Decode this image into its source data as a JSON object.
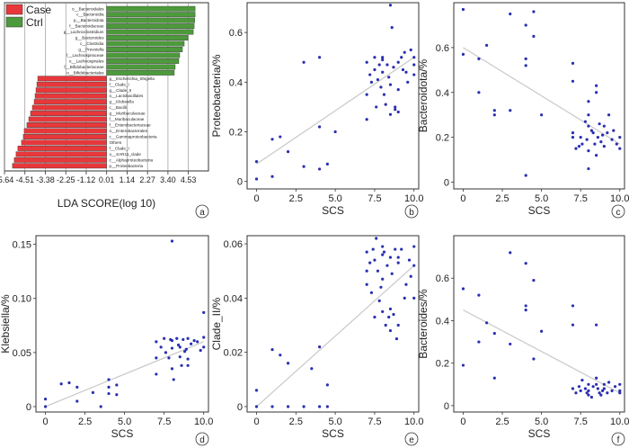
{
  "chart_data": [
    {
      "panel": "a",
      "type": "bar",
      "orientation": "horizontal",
      "xlabel": "LDA SCORE(log 10)",
      "xlim": [
        -5.64,
        5.64
      ],
      "xticks": [
        "-5.64",
        "-4.51",
        "-3.38",
        "-2.25",
        "-1.12",
        "0.01",
        "1.14",
        "2.27",
        "3.40",
        "4.53"
      ],
      "legend": [
        {
          "name": "Case",
          "color": "#e8373a"
        },
        {
          "name": "Ctrl",
          "color": "#4d9a3c"
        }
      ],
      "categories": [
        "o__Bacteroidales",
        "c__Bacteroidia",
        "p__Bacteroidota",
        "f__Bacteroidaceae",
        "g__Lachnoclostridium",
        "g__Bacteroides",
        "c__Clostridia",
        "g__Prevotella",
        "f__Lachnospiraceae",
        "o__Lachnospirales",
        "f__Bifidobacteriaceae",
        "o__Bifidobacteriales",
        "g__Escherichia_Shigella",
        "f__Clade_I",
        "g__Clade_II",
        "o__Lactobacillales",
        "g__Klebsiella",
        "c__Bacilli",
        "g__Muribaculaceae",
        "f__Muribaculaceae",
        "f__Enterobacteriaceae",
        "o__Enterobacterales",
        "c__Gammaproteobacteria",
        "Others",
        "f__Clade_I",
        "o__SAR11_clade",
        "c__Alphaproteobacteria",
        "p__Proteobacteria"
      ],
      "groups": [
        "Ctrl",
        "Ctrl",
        "Ctrl",
        "Ctrl",
        "Ctrl",
        "Ctrl",
        "Ctrl",
        "Ctrl",
        "Ctrl",
        "Ctrl",
        "Ctrl",
        "Ctrl",
        "Case",
        "Case",
        "Case",
        "Case",
        "Case",
        "Case",
        "Case",
        "Case",
        "Case",
        "Case",
        "Case",
        "Case",
        "Case",
        "Case",
        "Case",
        "Case"
      ],
      "values": [
        4.9,
        4.9,
        4.88,
        4.85,
        4.8,
        4.5,
        4.3,
        4.2,
        4.05,
        4.0,
        3.8,
        3.75,
        -3.8,
        -3.85,
        -3.9,
        -3.95,
        -4.0,
        -4.1,
        -4.2,
        -4.3,
        -4.4,
        -4.55,
        -4.6,
        -4.7,
        -4.9,
        -5.0,
        -5.1,
        -5.2
      ]
    },
    {
      "panel": "b",
      "type": "scatter",
      "xlabel": "SCS",
      "ylabel": "Proteobacteria/%",
      "xlim": [
        -0.6,
        10.3
      ],
      "ylim": [
        -0.03,
        0.72
      ],
      "xticks": [
        "0",
        "2.5",
        "5.0",
        "7.5",
        "10.0"
      ],
      "yticks": [
        "0",
        "0.2",
        "0.4",
        "0.6"
      ],
      "fit": [
        [
          0,
          0.07
        ],
        [
          10,
          0.5
        ]
      ],
      "points": [
        [
          0,
          0.01
        ],
        [
          0,
          0.08
        ],
        [
          1,
          0.17
        ],
        [
          1,
          0.02
        ],
        [
          1.5,
          0.18
        ],
        [
          2,
          0.12
        ],
        [
          3,
          0.06
        ],
        [
          3,
          0.48
        ],
        [
          4,
          0.22
        ],
        [
          4,
          0.05
        ],
        [
          4,
          0.5
        ],
        [
          4.5,
          0.07
        ],
        [
          5,
          0.2
        ],
        [
          7,
          0.35
        ],
        [
          7,
          0.25
        ],
        [
          7,
          0.48
        ],
        [
          7.2,
          0.43
        ],
        [
          7.3,
          0.4
        ],
        [
          7.5,
          0.45
        ],
        [
          7.5,
          0.5
        ],
        [
          7.6,
          0.3
        ],
        [
          7.7,
          0.41
        ],
        [
          7.8,
          0.47
        ],
        [
          7.9,
          0.38
        ],
        [
          8,
          0.5
        ],
        [
          8,
          0.44
        ],
        [
          8,
          0.49
        ],
        [
          8.1,
          0.35
        ],
        [
          8.2,
          0.31
        ],
        [
          8.3,
          0.47
        ],
        [
          8.4,
          0.42
        ],
        [
          8.5,
          0.39
        ],
        [
          8.5,
          0.27
        ],
        [
          8.5,
          0.71
        ],
        [
          8.6,
          0.62
        ],
        [
          8.7,
          0.46
        ],
        [
          8.8,
          0.3
        ],
        [
          8.8,
          0.29
        ],
        [
          9,
          0.28
        ],
        [
          9,
          0.37
        ],
        [
          9,
          0.48
        ],
        [
          9.2,
          0.5
        ],
        [
          9.3,
          0.45
        ],
        [
          9.4,
          0.52
        ],
        [
          9.5,
          0.44
        ],
        [
          9.6,
          0.4
        ],
        [
          9.8,
          0.53
        ],
        [
          10,
          0.47
        ],
        [
          10,
          0.5
        ],
        [
          10,
          0.43
        ]
      ]
    },
    {
      "panel": "c",
      "type": "scatter",
      "xlabel": "SCS",
      "ylabel": "Bacteroidota/%",
      "xlim": [
        -0.6,
        10.3
      ],
      "ylim": [
        -0.03,
        0.8
      ],
      "xticks": [
        "0",
        "2.5",
        "5.0",
        "7.5",
        "10.0"
      ],
      "yticks": [
        "0",
        "0.2",
        "0.4",
        "0.6"
      ],
      "fit": [
        [
          0,
          0.6
        ],
        [
          10,
          0.17
        ]
      ],
      "points": [
        [
          0,
          0.77
        ],
        [
          0,
          0.57
        ],
        [
          1,
          0.4
        ],
        [
          1,
          0.55
        ],
        [
          1.5,
          0.61
        ],
        [
          2,
          0.32
        ],
        [
          2,
          0.3
        ],
        [
          3,
          0.75
        ],
        [
          3,
          0.32
        ],
        [
          4,
          0.55
        ],
        [
          4,
          0.52
        ],
        [
          4,
          0.03
        ],
        [
          4,
          0.7
        ],
        [
          4.5,
          0.65
        ],
        [
          4.5,
          0.76
        ],
        [
          5,
          0.3
        ],
        [
          7,
          0.53
        ],
        [
          7,
          0.45
        ],
        [
          7,
          0.22
        ],
        [
          7,
          0.2
        ],
        [
          7.2,
          0.15
        ],
        [
          7.4,
          0.16
        ],
        [
          7.5,
          0.2
        ],
        [
          7.6,
          0.17
        ],
        [
          7.8,
          0.27
        ],
        [
          7.9,
          0.19
        ],
        [
          8,
          0.36
        ],
        [
          8,
          0.3
        ],
        [
          8,
          0.14
        ],
        [
          8,
          0.06
        ],
        [
          8,
          0.25
        ],
        [
          8.2,
          0.23
        ],
        [
          8.3,
          0.22
        ],
        [
          8.4,
          0.17
        ],
        [
          8.5,
          0.4
        ],
        [
          8.5,
          0.12
        ],
        [
          8.5,
          0.43
        ],
        [
          8.6,
          0.2
        ],
        [
          8.7,
          0.26
        ],
        [
          8.8,
          0.18
        ],
        [
          8.9,
          0.21
        ],
        [
          9,
          0.25
        ],
        [
          9,
          0.16
        ],
        [
          9.2,
          0.22
        ],
        [
          9.3,
          0.3
        ],
        [
          9.5,
          0.19
        ],
        [
          9.6,
          0.23
        ],
        [
          9.8,
          0.17
        ],
        [
          10,
          0.15
        ],
        [
          10,
          0.2
        ]
      ]
    },
    {
      "panel": "d",
      "type": "scatter",
      "xlabel": "SCS",
      "ylabel": "Klebsiella/%",
      "xlim": [
        -0.6,
        10.3
      ],
      "ylim": [
        -0.005,
        0.158
      ],
      "xticks": [
        "0",
        "2.5",
        "5.0",
        "7.5",
        "10.0"
      ],
      "yticks": [
        "0",
        "0.05",
        "0.10",
        "0.15"
      ],
      "fit": [
        [
          0,
          0.0
        ],
        [
          10,
          0.06
        ]
      ],
      "points": [
        [
          0,
          0.0
        ],
        [
          0,
          0.007
        ],
        [
          1,
          0.021
        ],
        [
          1.5,
          0.022
        ],
        [
          2,
          0.005
        ],
        [
          2,
          0.018
        ],
        [
          3,
          0.013
        ],
        [
          3.5,
          0.0
        ],
        [
          4,
          0.018
        ],
        [
          4,
          0.025
        ],
        [
          4,
          0.012
        ],
        [
          4.5,
          0.011
        ],
        [
          4.5,
          0.02
        ],
        [
          7,
          0.06
        ],
        [
          7,
          0.045
        ],
        [
          7,
          0.03
        ],
        [
          7.3,
          0.055
        ],
        [
          7.5,
          0.063
        ],
        [
          7.6,
          0.05
        ],
        [
          7.8,
          0.045
        ],
        [
          7.9,
          0.062
        ],
        [
          8,
          0.153
        ],
        [
          8,
          0.054
        ],
        [
          8,
          0.035
        ],
        [
          8,
          0.061
        ],
        [
          8.1,
          0.025
        ],
        [
          8.3,
          0.063
        ],
        [
          8.4,
          0.057
        ],
        [
          8.5,
          0.055
        ],
        [
          8.5,
          0.046
        ],
        [
          8.6,
          0.038
        ],
        [
          8.7,
          0.062
        ],
        [
          8.8,
          0.051
        ],
        [
          8.9,
          0.053
        ],
        [
          9,
          0.044
        ],
        [
          9,
          0.063
        ],
        [
          9,
          0.038
        ],
        [
          9.2,
          0.058
        ],
        [
          9.4,
          0.061
        ],
        [
          9.6,
          0.06
        ],
        [
          9.8,
          0.052
        ],
        [
          10,
          0.087
        ],
        [
          10,
          0.064
        ],
        [
          10,
          0.055
        ]
      ]
    },
    {
      "panel": "e",
      "type": "scatter",
      "xlabel": "SCS",
      "ylabel": "Clade_II/%",
      "xlim": [
        -0.6,
        10.3
      ],
      "ylim": [
        -0.002,
        0.063
      ],
      "xticks": [
        "0",
        "2.5",
        "5.0",
        "7.5",
        "10.0"
      ],
      "yticks": [
        "0",
        "0.02",
        "0.04",
        "0.06"
      ],
      "fit": [
        [
          0,
          0.0
        ],
        [
          10,
          0.052
        ]
      ],
      "points": [
        [
          0,
          0.006
        ],
        [
          0,
          0.0
        ],
        [
          1,
          0.021
        ],
        [
          1,
          0.0
        ],
        [
          1.5,
          0.019
        ],
        [
          2,
          0.016
        ],
        [
          2,
          0.0
        ],
        [
          3,
          0.0
        ],
        [
          3.5,
          0.014
        ],
        [
          4,
          0.022
        ],
        [
          4,
          0.0
        ],
        [
          4.5,
          0.008
        ],
        [
          4.5,
          0.0
        ],
        [
          7,
          0.057
        ],
        [
          7,
          0.05
        ],
        [
          7,
          0.045
        ],
        [
          7.2,
          0.053
        ],
        [
          7.3,
          0.042
        ],
        [
          7.4,
          0.058
        ],
        [
          7.5,
          0.054
        ],
        [
          7.5,
          0.033
        ],
        [
          7.6,
          0.062
        ],
        [
          7.7,
          0.05
        ],
        [
          7.8,
          0.039
        ],
        [
          7.9,
          0.044
        ],
        [
          8,
          0.059
        ],
        [
          8,
          0.056
        ],
        [
          8,
          0.035
        ],
        [
          8,
          0.047
        ],
        [
          8.1,
          0.057
        ],
        [
          8.2,
          0.03
        ],
        [
          8.3,
          0.052
        ],
        [
          8.4,
          0.033
        ],
        [
          8.5,
          0.055
        ],
        [
          8.5,
          0.036
        ],
        [
          8.5,
          0.028
        ],
        [
          8.6,
          0.049
        ],
        [
          8.7,
          0.034
        ],
        [
          8.8,
          0.058
        ],
        [
          8.9,
          0.025
        ],
        [
          9,
          0.053
        ],
        [
          9,
          0.055
        ],
        [
          9,
          0.03
        ],
        [
          9.2,
          0.058
        ],
        [
          9.4,
          0.04
        ],
        [
          9.5,
          0.045
        ],
        [
          9.7,
          0.054
        ],
        [
          9.8,
          0.048
        ],
        [
          10,
          0.059
        ],
        [
          10,
          0.04
        ],
        [
          10,
          0.052
        ]
      ]
    },
    {
      "panel": "f",
      "type": "scatter",
      "xlabel": "SCS",
      "ylabel": "Bacteroides/%",
      "xlim": [
        -0.6,
        10.3
      ],
      "ylim": [
        -0.03,
        0.8
      ],
      "xticks": [
        "0",
        "2.5",
        "5.0",
        "7.5",
        "10.0"
      ],
      "yticks": [
        "0",
        "0.2",
        "0.4",
        "0.6"
      ],
      "fit": [
        [
          0,
          0.45
        ],
        [
          10,
          0.06
        ]
      ],
      "points": [
        [
          0,
          0.55
        ],
        [
          0,
          0.19
        ],
        [
          1,
          0.52
        ],
        [
          1,
          0.3
        ],
        [
          1.5,
          0.39
        ],
        [
          2,
          0.34
        ],
        [
          2,
          0.13
        ],
        [
          3,
          0.72
        ],
        [
          3,
          0.29
        ],
        [
          4,
          0.47
        ],
        [
          4,
          0.45
        ],
        [
          4,
          0.67
        ],
        [
          4.5,
          0.59
        ],
        [
          4.5,
          0.22
        ],
        [
          5,
          0.35
        ],
        [
          7,
          0.47
        ],
        [
          7,
          0.38
        ],
        [
          7,
          0.08
        ],
        [
          7.2,
          0.06
        ],
        [
          7.4,
          0.09
        ],
        [
          7.5,
          0.07
        ],
        [
          7.6,
          0.12
        ],
        [
          7.8,
          0.08
        ],
        [
          7.9,
          0.06
        ],
        [
          8,
          0.07
        ],
        [
          8,
          0.1
        ],
        [
          8,
          0.05
        ],
        [
          8.2,
          0.04
        ],
        [
          8.3,
          0.09
        ],
        [
          8.5,
          0.38
        ],
        [
          8.5,
          0.1
        ],
        [
          8.5,
          0.13
        ],
        [
          8.6,
          0.08
        ],
        [
          8.7,
          0.06
        ],
        [
          8.8,
          0.05
        ],
        [
          8.9,
          0.07
        ],
        [
          9,
          0.1
        ],
        [
          9,
          0.08
        ],
        [
          9.2,
          0.06
        ],
        [
          9.3,
          0.11
        ],
        [
          9.5,
          0.07
        ],
        [
          9.7,
          0.09
        ],
        [
          10,
          0.1
        ],
        [
          10,
          0.07
        ],
        [
          10,
          0.06
        ]
      ]
    }
  ]
}
